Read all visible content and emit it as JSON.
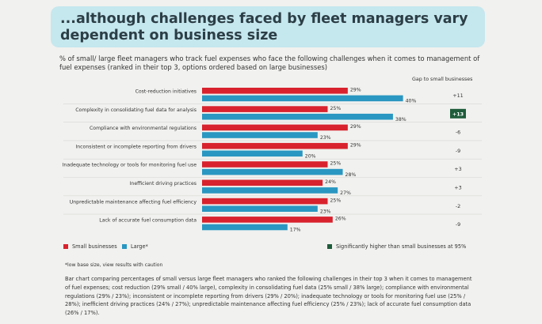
{
  "header": {
    "title": "...although challenges faced by fleet managers vary dependent on business size"
  },
  "subtitle": "% of small/ large fleet managers who track fuel expenses who face the following challenges when it comes to management of fuel expenses (ranked in their top 3, options ordered based on large businesses)",
  "gap_header": "Gap to small businesses",
  "legend": {
    "small": "Small businesses",
    "large": "Large*",
    "significant": "Significantly higher than small businesses at 95%"
  },
  "colors": {
    "small": "#d8222d",
    "large": "#2997c1",
    "significant": "#1e5c3b",
    "header_bg": "#c5e7ee"
  },
  "footnote": "*low base size, view results with caution",
  "description": "Bar chart comparing percentages of small versus large fleet managers who ranked the following challenges in their top 3 when it comes to management of fuel expenses; cost reduction (29% small / 40% large), complexity in consolidating fuel data (25% small / 38% large); compliance with environmental regulations (29% / 23%); inconsistent or incomplete reporting from drivers (29% / 20%); inadequate technology or tools for monitoring fuel use (25% / 28%); inefficient driving practices (24% / 27%); unpredictable maintenance affecting fuel efficiency (25% / 23%); lack of accurate fuel consumption data (26% / 17%).",
  "chart_data": {
    "type": "bar",
    "orientation": "horizontal",
    "categories": [
      "Cost-reduction initiatives",
      "Complexity in consolidating fuel data for analysis",
      "Compliance with environmental regulations",
      "Inconsistent or incomplete reporting from drivers",
      "Inadequate technology or tools for monitoring fuel use",
      "Inefficient driving practices",
      "Unpredictable maintenance affecting fuel efficiency",
      "Lack of accurate fuel consumption data"
    ],
    "series": [
      {
        "name": "Small businesses",
        "values": [
          29,
          25,
          29,
          29,
          25,
          24,
          25,
          26
        ]
      },
      {
        "name": "Large*",
        "values": [
          40,
          38,
          23,
          20,
          28,
          27,
          23,
          17
        ]
      }
    ],
    "value_labels_small": [
      "29%",
      "25%",
      "29%",
      "29%",
      "25%",
      "24%",
      "25%",
      "26%"
    ],
    "value_labels_large": [
      "40%",
      "38%",
      "23%",
      "20%",
      "28%",
      "27%",
      "23%",
      "17%"
    ],
    "gaps": [
      "+11",
      "+13",
      "-6",
      "-9",
      "+3",
      "+3",
      "-2",
      "-9"
    ],
    "gap_significant": [
      false,
      true,
      false,
      false,
      false,
      false,
      false,
      false
    ],
    "unit": "%",
    "legend_position": "bottom-left"
  }
}
